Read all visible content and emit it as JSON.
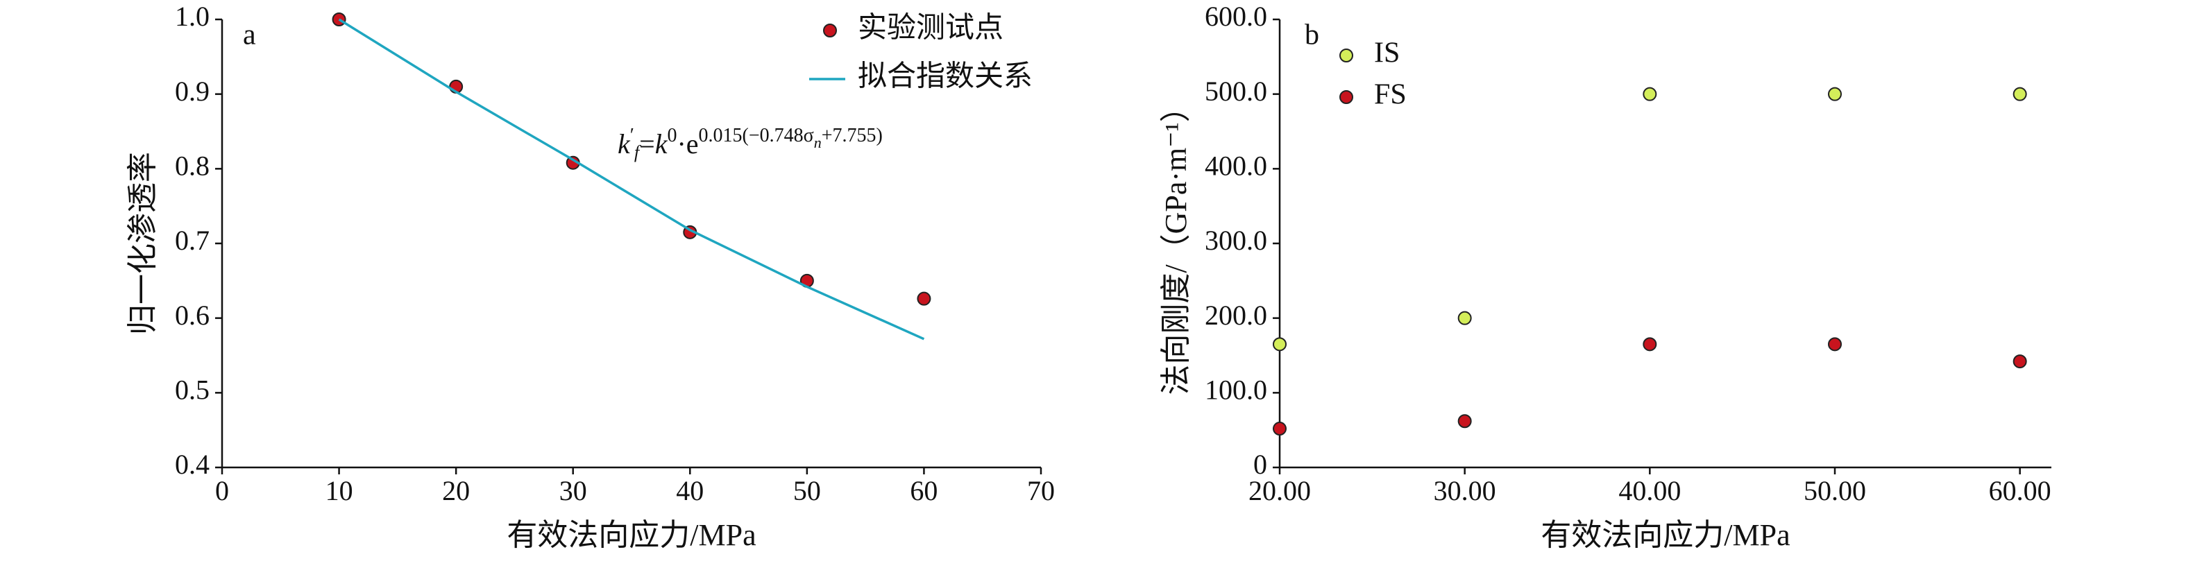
{
  "chart_data": [
    {
      "type": "scatter",
      "panel_label": "a",
      "xlabel": "有效法向应力/MPa",
      "ylabel": "归一化渗透率",
      "xlim": [
        0,
        70
      ],
      "xticks": [
        0,
        10,
        20,
        30,
        40,
        50,
        60,
        70
      ],
      "ylim": [
        0.4,
        1.0
      ],
      "yticks": [
        0.4,
        0.5,
        0.6,
        0.7,
        0.8,
        0.9,
        {
          "value": 1.0,
          "label": "1.0"
        }
      ],
      "series": [
        {
          "name": "实验测试点",
          "kind": "scatter",
          "color": "#c8141e",
          "x": [
            10,
            20,
            30,
            40,
            50,
            60
          ],
          "values": [
            1.0,
            0.91,
            0.808,
            0.715,
            0.65,
            0.626
          ]
        },
        {
          "name": "拟合指数关系",
          "kind": "line",
          "color": "#1fa6c0",
          "x": [
            10,
            20,
            30,
            40,
            50,
            60
          ],
          "values": [
            1.0,
            0.903,
            0.812,
            0.718,
            0.642,
            0.572
          ]
        }
      ],
      "annotation": [
        {
          "text": "k",
          "pos": "base"
        },
        {
          "text": "′",
          "pos": "sup"
        },
        {
          "text": "f",
          "pos": "sub"
        },
        {
          "text": "=",
          "pos": "base"
        },
        {
          "text": "k",
          "pos": "base"
        },
        {
          "text": "0",
          "pos": "sup"
        },
        {
          "text": "·e",
          "pos": "base"
        },
        {
          "text": "0.015(−0.748σ",
          "pos": "sup"
        },
        {
          "text": "n",
          "pos": "supsub"
        },
        {
          "text": "+7.755)",
          "pos": "sup"
        }
      ]
    },
    {
      "type": "scatter",
      "panel_label": "b",
      "xlabel": "有效法向应力/MPa",
      "ylabel": "法向刚度/（GPa·m⁻¹）",
      "xlim": [
        20,
        61.7
      ],
      "xticks": [
        {
          "value": 20,
          "label": "20.00"
        },
        {
          "value": 30,
          "label": "30.00"
        },
        {
          "value": 40,
          "label": "40.00"
        },
        {
          "value": 50,
          "label": "50.00"
        },
        {
          "value": 60,
          "label": "60.00"
        }
      ],
      "ylim": [
        0,
        600
      ],
      "yticks": [
        0,
        {
          "value": 100,
          "label": "100.0"
        },
        {
          "value": 200,
          "label": "200.0"
        },
        {
          "value": 300,
          "label": "300.0"
        },
        {
          "value": 400,
          "label": "400.0"
        },
        {
          "value": 500,
          "label": "500.0"
        },
        {
          "value": 600,
          "label": "600.0"
        }
      ],
      "series": [
        {
          "name": "IS",
          "kind": "scatter",
          "color": "#d4ee5a",
          "x": [
            20,
            30,
            40,
            50,
            60
          ],
          "values": [
            165,
            200,
            500,
            500,
            500
          ]
        },
        {
          "name": "FS",
          "kind": "scatter",
          "color": "#c8141e",
          "x": [
            20,
            30,
            40,
            50,
            60
          ],
          "values": [
            52,
            62,
            165,
            165,
            142
          ]
        }
      ]
    }
  ]
}
